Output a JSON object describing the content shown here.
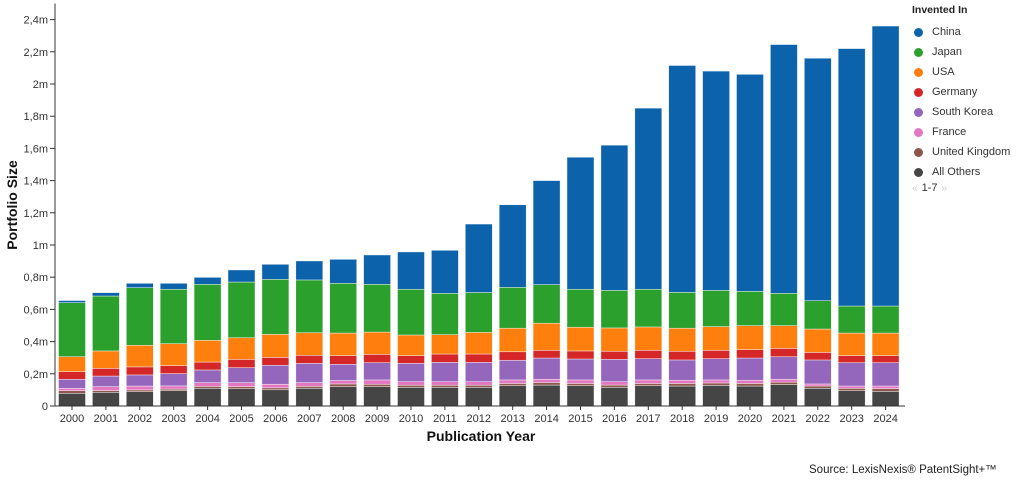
{
  "chart_data": {
    "type": "bar",
    "stacked": true,
    "xlabel": "Publication Year",
    "ylabel": "Portfolio Size",
    "ylim": [
      0,
      2.5
    ],
    "yunit": "million",
    "yticks": [
      0,
      0.2,
      0.4,
      0.6,
      0.8,
      1,
      1.2,
      1.4,
      1.6,
      1.8,
      2,
      2.2,
      2.4
    ],
    "ytick_labels": [
      "0",
      "0,2m",
      "0,4m",
      "0,6m",
      "0,8m",
      "1m",
      "1,2m",
      "1,4m",
      "1,6m",
      "1,8m",
      "2m",
      "2,2m",
      "2,4m"
    ],
    "grid": false,
    "legend_position": "right",
    "categories": [
      "2000",
      "2001",
      "2002",
      "2003",
      "2004",
      "2005",
      "2006",
      "2007",
      "2008",
      "2009",
      "2010",
      "2011",
      "2012",
      "2013",
      "2014",
      "2015",
      "2016",
      "2017",
      "2018",
      "2019",
      "2020",
      "2021",
      "2022",
      "2023",
      "2024"
    ],
    "series": [
      {
        "name": "China",
        "color": "#0c63ab",
        "values": [
          0.013,
          0.021,
          0.027,
          0.037,
          0.043,
          0.075,
          0.093,
          0.118,
          0.149,
          0.182,
          0.232,
          0.267,
          0.425,
          0.513,
          0.646,
          0.82,
          0.902,
          1.125,
          1.409,
          1.362,
          1.348,
          1.545,
          1.506,
          1.599,
          1.739
        ]
      },
      {
        "name": "Japan",
        "color": "#2ca02c",
        "values": [
          0.336,
          0.341,
          0.358,
          0.338,
          0.348,
          0.346,
          0.342,
          0.328,
          0.309,
          0.297,
          0.284,
          0.257,
          0.248,
          0.254,
          0.24,
          0.236,
          0.233,
          0.234,
          0.223,
          0.225,
          0.213,
          0.201,
          0.176,
          0.168,
          0.168
        ]
      },
      {
        "name": "USA",
        "color": "#ff7f0e",
        "values": [
          0.093,
          0.108,
          0.134,
          0.136,
          0.135,
          0.134,
          0.143,
          0.14,
          0.14,
          0.138,
          0.128,
          0.12,
          0.134,
          0.146,
          0.168,
          0.147,
          0.145,
          0.145,
          0.143,
          0.147,
          0.149,
          0.141,
          0.145,
          0.14,
          0.14
        ]
      },
      {
        "name": "Germany",
        "color": "#d62728",
        "values": [
          0.047,
          0.048,
          0.05,
          0.05,
          0.049,
          0.052,
          0.049,
          0.05,
          0.054,
          0.052,
          0.048,
          0.052,
          0.052,
          0.053,
          0.048,
          0.05,
          0.05,
          0.052,
          0.054,
          0.052,
          0.052,
          0.052,
          0.047,
          0.044,
          0.044
        ]
      },
      {
        "name": "South Korea",
        "color": "#9467bd",
        "values": [
          0.056,
          0.066,
          0.069,
          0.076,
          0.079,
          0.093,
          0.118,
          0.12,
          0.101,
          0.107,
          0.114,
          0.12,
          0.12,
          0.122,
          0.132,
          0.13,
          0.139,
          0.132,
          0.126,
          0.132,
          0.138,
          0.14,
          0.149,
          0.145,
          0.145
        ]
      },
      {
        "name": "France",
        "color": "#e377c2",
        "values": [
          0.015,
          0.024,
          0.024,
          0.02,
          0.023,
          0.025,
          0.022,
          0.023,
          0.021,
          0.027,
          0.022,
          0.022,
          0.022,
          0.022,
          0.02,
          0.022,
          0.021,
          0.022,
          0.02,
          0.019,
          0.02,
          0.018,
          0.013,
          0.014,
          0.016
        ]
      },
      {
        "name": "United Kingdom",
        "color": "#8c564b",
        "values": [
          0.016,
          0.011,
          0.011,
          0.01,
          0.012,
          0.012,
          0.012,
          0.012,
          0.017,
          0.015,
          0.013,
          0.013,
          0.013,
          0.014,
          0.016,
          0.014,
          0.014,
          0.014,
          0.016,
          0.015,
          0.016,
          0.015,
          0.014,
          0.015,
          0.017
        ]
      },
      {
        "name": "All Others",
        "color": "#454545",
        "values": [
          0.079,
          0.085,
          0.089,
          0.095,
          0.11,
          0.108,
          0.101,
          0.11,
          0.12,
          0.12,
          0.116,
          0.116,
          0.116,
          0.126,
          0.13,
          0.126,
          0.116,
          0.126,
          0.124,
          0.128,
          0.124,
          0.133,
          0.11,
          0.095,
          0.091
        ]
      }
    ]
  },
  "legend": {
    "title": "Invented In",
    "pager": "1-7",
    "prev_icon": "double-chevron-left-icon",
    "next_icon": "double-chevron-right-icon"
  },
  "source": "Source: LexisNexis® PatentSight+™"
}
